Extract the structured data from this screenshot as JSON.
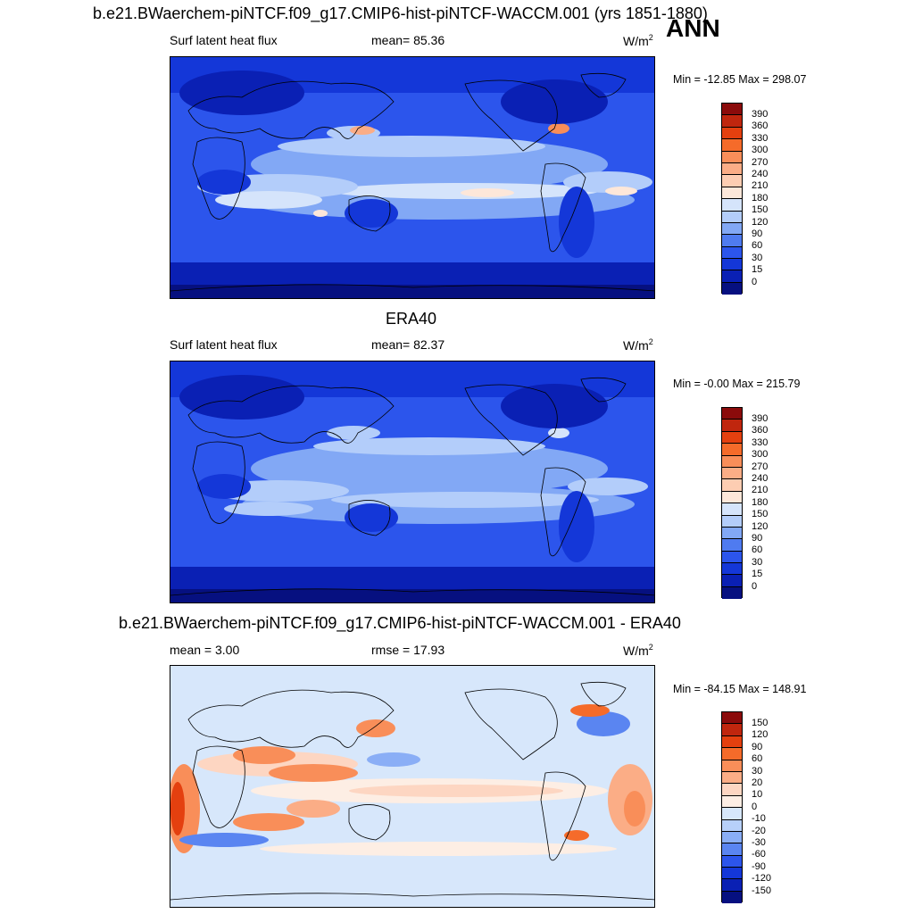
{
  "panels": [
    {
      "title": "b.e21.BWaerchem-piNTCF.f09_g17.CMIP6-hist-piNTCF-WACCM.001 (yrs 1851-1880)",
      "left_label": "Surf latent heat flux",
      "center_label": "mean=  85.36",
      "units": "W/m",
      "units_sup": "2",
      "minmax": "Min = -12.85 Max = 298.07",
      "colorbar_labels": [
        "390",
        "360",
        "330",
        "300",
        "270",
        "240",
        "210",
        "180",
        "150",
        "120",
        "90",
        "60",
        "30",
        "15",
        "0"
      ]
    },
    {
      "title": "ERA40",
      "left_label": "Surf latent heat flux",
      "center_label": "mean=  82.37",
      "units": "W/m",
      "units_sup": "2",
      "minmax": "Min =  -0.00 Max = 215.79",
      "colorbar_labels": [
        "390",
        "360",
        "330",
        "300",
        "270",
        "240",
        "210",
        "180",
        "150",
        "120",
        "90",
        "60",
        "30",
        "15",
        "0"
      ]
    },
    {
      "title": "b.e21.BWaerchem-piNTCF.f09_g17.CMIP6-hist-piNTCF-WACCM.001 - ERA40",
      "left_label": "mean =   3.00",
      "center_label": "rmse =  17.93",
      "units": "W/m",
      "units_sup": "2",
      "minmax": "Min = -84.15 Max = 148.91",
      "colorbar_labels": [
        "150",
        "120",
        "90",
        "60",
        "30",
        "20",
        "10",
        "0",
        "-10",
        "-20",
        "-30",
        "-60",
        "-90",
        "-120",
        "-150"
      ]
    }
  ],
  "season": "ANN",
  "colors": {
    "abs_scale": [
      "#8b0b0b",
      "#c0260e",
      "#e4400f",
      "#f56b2a",
      "#f98e59",
      "#fbad86",
      "#fdcdb2",
      "#fde7d9",
      "#d5e4fb",
      "#b3cdfa",
      "#82a8f5",
      "#4f7bf0",
      "#2c55ec",
      "#1437d8",
      "#0a20b4",
      "#061080"
    ],
    "diff_scale": [
      "#8b0b0b",
      "#c0260e",
      "#e4400f",
      "#f56b2a",
      "#f98e59",
      "#fbad86",
      "#fdd6c2",
      "#fdeee4",
      "#d7e7fb",
      "#b7d0fa",
      "#8aaef6",
      "#5a85f1",
      "#2c55ec",
      "#1437d8",
      "#0a20b4",
      "#061080"
    ]
  }
}
